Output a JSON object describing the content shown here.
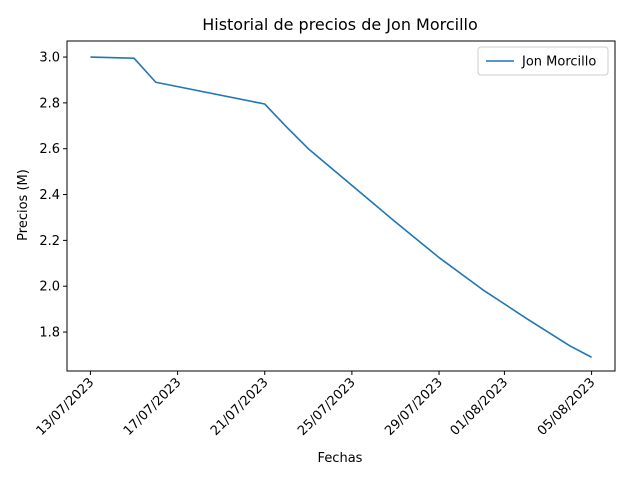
{
  "chart_data": {
    "type": "line",
    "title": "Historial de precios de Jon Morcillo",
    "xlabel": "Fechas",
    "ylabel": "Precios (M)",
    "x_ticks": [
      "13/07/2023",
      "17/07/2023",
      "21/07/2023",
      "25/07/2023",
      "29/07/2023",
      "01/08/2023",
      "05/08/2023"
    ],
    "y_ticks": [
      "1.8",
      "2.0",
      "2.2",
      "2.4",
      "2.6",
      "2.8",
      "3.0"
    ],
    "ylim": [
      1.63,
      3.07
    ],
    "xlim": [
      "11/07/2023 22:12",
      "06/08/2023 01:48"
    ],
    "legend": {
      "position": "top-right"
    },
    "colors": {
      "series": "#1f77b4"
    },
    "series": [
      {
        "name": "Jon Morcillo",
        "x": [
          "13/07/2023",
          "15/07/2023",
          "16/07/2023",
          "21/07/2023",
          "22/07/2023",
          "23/07/2023",
          "25/07/2023",
          "27/07/2023",
          "29/07/2023",
          "31/07/2023",
          "02/08/2023",
          "04/08/2023",
          "05/08/2023"
        ],
        "values": [
          3.0,
          2.995,
          2.89,
          2.795,
          2.695,
          2.6,
          2.44,
          2.28,
          2.125,
          1.985,
          1.86,
          1.74,
          1.69
        ]
      }
    ]
  }
}
